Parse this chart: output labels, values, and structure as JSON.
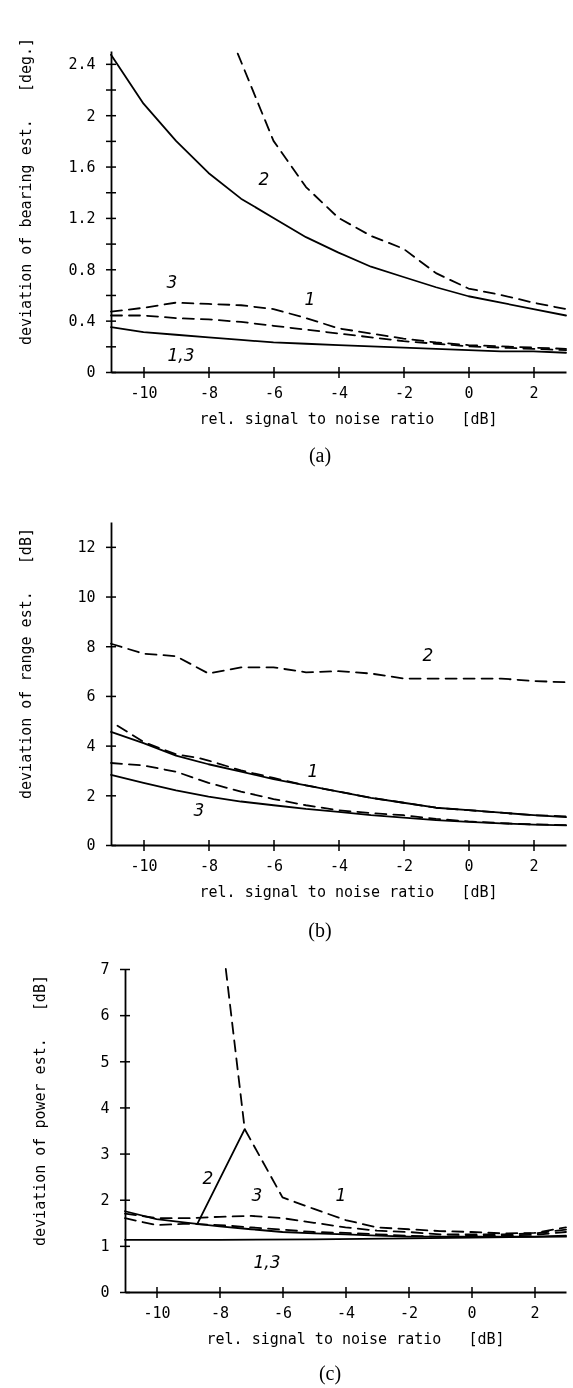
{
  "chart_data": [
    {
      "type": "line",
      "xlabel": "rel. signal to noise ratio   [dB]",
      "ylabel": "deviation of bearing est.   [deg.]",
      "xlim": [
        -11,
        3
      ],
      "ylim": [
        0,
        2.5
      ],
      "xticks": [
        {
          "value": -10,
          "label": "-10"
        },
        {
          "value": -8,
          "label": "-8"
        },
        {
          "value": -6,
          "label": "-6"
        },
        {
          "value": -4,
          "label": "-4"
        },
        {
          "value": -2,
          "label": "-2"
        },
        {
          "value": 0,
          "label": "0"
        },
        {
          "value": 2,
          "label": "2"
        }
      ],
      "yticks": [
        {
          "value": 0,
          "label": "0"
        },
        {
          "value": 0.2,
          "label": null
        },
        0.4,
        {
          "value": 0.6,
          "label": null
        },
        0.8,
        {
          "value": 1.0,
          "label": null
        },
        1.2,
        {
          "value": 1.4,
          "label": null
        },
        1.6,
        {
          "value": 1.8,
          "label": null
        },
        2,
        {
          "value": 2.2,
          "label": null
        },
        2.4
      ],
      "series": [
        {
          "color": "#000000",
          "line_style": "solid",
          "x": [
            -11,
            -10,
            -9,
            -8,
            -7,
            -6,
            -5,
            -4,
            -3,
            -2,
            -1,
            0,
            1,
            2,
            3
          ],
          "values": [
            2.47,
            2.09,
            1.8,
            1.55,
            1.35,
            1.2,
            1.05,
            0.93,
            0.82,
            0.74,
            0.66,
            0.59,
            0.54,
            0.49,
            0.44
          ]
        },
        {
          "color": "#000000",
          "line_style": "dashed",
          "x": [
            -7.1,
            -6,
            -5.5,
            -5,
            -4,
            -3,
            -2,
            -1,
            0,
            1,
            2,
            3
          ],
          "values": [
            2.48,
            1.8,
            1.62,
            1.44,
            1.2,
            1.06,
            0.96,
            0.77,
            0.65,
            0.6,
            0.54,
            0.49
          ]
        },
        {
          "color": "#000000",
          "line_style": "dashed",
          "x": [
            -11,
            -10,
            -9,
            -8,
            -7,
            -6,
            -5,
            -4,
            -3,
            -2,
            -1,
            0,
            1,
            2,
            3
          ],
          "values": [
            0.47,
            0.5,
            0.54,
            0.53,
            0.52,
            0.49,
            0.42,
            0.34,
            0.3,
            0.26,
            0.23,
            0.21,
            0.2,
            0.19,
            0.18
          ]
        },
        {
          "color": "#000000",
          "line_style": "dashed",
          "x": [
            -11,
            -10,
            -9,
            -8,
            -7,
            -6,
            -5,
            -4,
            -3,
            -2,
            -1,
            0,
            1,
            2,
            3
          ],
          "values": [
            0.44,
            0.44,
            0.42,
            0.41,
            0.39,
            0.36,
            0.33,
            0.3,
            0.27,
            0.24,
            0.22,
            0.2,
            0.19,
            0.18,
            0.17
          ]
        },
        {
          "color": "#000000",
          "line_style": "solid",
          "x": [
            -11,
            -10,
            -9,
            -8,
            -7,
            -6,
            -5,
            -4,
            -3,
            -2,
            -1,
            0,
            1,
            2,
            3
          ],
          "values": [
            0.35,
            0.31,
            0.29,
            0.27,
            0.25,
            0.23,
            0.22,
            0.21,
            0.2,
            0.19,
            0.18,
            0.17,
            0.16,
            0.16,
            0.15
          ]
        }
      ],
      "annotations": [
        "2",
        "3",
        "1",
        "1,3",
        "(a)"
      ]
    },
    {
      "type": "line",
      "xlabel": "rel. signal to noise ratio   [dB]",
      "ylabel": "deviation of range est.   [dB]",
      "xlim": [
        -11,
        3
      ],
      "ylim": [
        0,
        13
      ],
      "xticks": [
        {
          "value": -10,
          "label": "-10"
        },
        {
          "value": -8,
          "label": "-8"
        },
        {
          "value": -6,
          "label": "-6"
        },
        {
          "value": -4,
          "label": "-4"
        },
        {
          "value": -2,
          "label": "-2"
        },
        {
          "value": 0,
          "label": "0"
        },
        {
          "value": 2,
          "label": "2"
        }
      ],
      "yticks": [
        {
          "value": 0,
          "label": "0"
        },
        2,
        4,
        6,
        8,
        10,
        12
      ],
      "series": [
        {
          "color": "#000000",
          "line_style": "dashed",
          "x": [
            -11,
            -10,
            -9,
            -8,
            -7,
            -6,
            -5,
            -4,
            -3,
            -2,
            -1,
            0,
            1,
            2,
            3
          ],
          "values": [
            8.1,
            7.7,
            7.6,
            6.9,
            7.15,
            7.15,
            6.95,
            7.0,
            6.9,
            6.7,
            6.7,
            6.7,
            6.7,
            6.6,
            6.55
          ]
        },
        {
          "color": "#000000",
          "line_style": "solid",
          "x": [
            -11,
            -10,
            -9,
            -8,
            -7,
            -6,
            -5,
            -4,
            -3,
            -2,
            -1,
            0,
            1,
            2,
            3
          ],
          "values": [
            4.55,
            4.1,
            3.6,
            3.25,
            2.95,
            2.65,
            2.4,
            2.15,
            1.9,
            1.7,
            1.5,
            1.4,
            1.3,
            1.2,
            1.12
          ]
        },
        {
          "color": "#000000",
          "line_style": "dashed",
          "x": [
            -10.8,
            -10,
            -9,
            -8.3,
            -8,
            -7,
            -6,
            -5,
            -4,
            -3,
            -2,
            -1,
            0,
            1,
            2,
            3
          ],
          "values": [
            4.8,
            4.15,
            3.65,
            3.5,
            3.4,
            3.0,
            2.7,
            2.4,
            2.15,
            1.9,
            1.7,
            1.5,
            1.4,
            1.3,
            1.2,
            1.15
          ]
        },
        {
          "color": "#000000",
          "line_style": "dashed",
          "x": [
            -11,
            -10,
            -9,
            -8,
            -7,
            -6,
            -5,
            -4,
            -3,
            -2,
            -1,
            0,
            1,
            2,
            3
          ],
          "values": [
            3.3,
            3.2,
            2.95,
            2.5,
            2.15,
            1.85,
            1.6,
            1.4,
            1.28,
            1.2,
            1.05,
            0.95,
            0.88,
            0.83,
            0.8
          ]
        },
        {
          "color": "#000000",
          "line_style": "solid",
          "x": [
            -11,
            -10,
            -9,
            -8,
            -7,
            -6,
            -5,
            -4,
            -3,
            -2,
            -1,
            0,
            1,
            2,
            3
          ],
          "values": [
            2.82,
            2.5,
            2.2,
            1.95,
            1.75,
            1.6,
            1.45,
            1.33,
            1.2,
            1.1,
            1.0,
            0.93,
            0.87,
            0.82,
            0.79
          ]
        }
      ],
      "annotations": [
        "2",
        "1",
        "3",
        "(b)"
      ]
    },
    {
      "type": "line",
      "xlabel": "rel. signal to noise ratio   [dB]",
      "ylabel": "deviation of power est.   [dB]",
      "xlim": [
        -11,
        3
      ],
      "ylim": [
        0,
        7
      ],
      "xticks": [
        {
          "value": -10,
          "label": "-10"
        },
        {
          "value": -8,
          "label": "-8"
        },
        {
          "value": -6,
          "label": "-6"
        },
        {
          "value": -4,
          "label": "-4"
        },
        {
          "value": -2,
          "label": "-2"
        },
        {
          "value": 0,
          "label": "0"
        },
        {
          "value": 2,
          "label": "2"
        }
      ],
      "yticks": [
        {
          "value": 0,
          "label": "0"
        },
        1,
        2,
        3,
        4,
        5,
        6,
        7
      ],
      "series": [
        {
          "color": "#000000",
          "line_style": "dashed",
          "x": [
            -7.8,
            -7.2,
            -6,
            -5,
            -4,
            -3,
            -2,
            -1,
            0,
            1,
            2,
            3
          ],
          "values": [
            7.0,
            3.53,
            2.05,
            1.8,
            1.56,
            1.4,
            1.36,
            1.32,
            1.3,
            1.27,
            1.28,
            1.4
          ]
        },
        {
          "color": "#000000",
          "line_style": "solid",
          "x": [
            -8.7,
            -7.2
          ],
          "values": [
            1.48,
            3.53
          ]
        },
        {
          "color": "#000000",
          "line_style": "solid",
          "x": [
            -11,
            -10,
            -9,
            -8,
            -7,
            -6,
            -5,
            -4,
            -3,
            -2,
            -1,
            0,
            1,
            2,
            3
          ],
          "values": [
            1.75,
            1.58,
            1.5,
            1.42,
            1.36,
            1.3,
            1.27,
            1.25,
            1.22,
            1.2,
            1.2,
            1.2,
            1.2,
            1.2,
            1.22
          ]
        },
        {
          "color": "#000000",
          "line_style": "dashed",
          "x": [
            -11,
            -10,
            -9,
            -8,
            -7,
            -6,
            -5,
            -4,
            -3,
            -2,
            -1,
            0,
            1,
            2,
            3
          ],
          "values": [
            1.7,
            1.6,
            1.6,
            1.63,
            1.65,
            1.6,
            1.5,
            1.4,
            1.33,
            1.3,
            1.25,
            1.25,
            1.25,
            1.27,
            1.35
          ]
        },
        {
          "color": "#000000",
          "line_style": "dashed",
          "x": [
            -11,
            -10,
            -9,
            -8,
            -7,
            -6,
            -5,
            -4,
            -3,
            -2,
            -1,
            0,
            1,
            2,
            3
          ],
          "values": [
            1.6,
            1.45,
            1.48,
            1.45,
            1.4,
            1.35,
            1.3,
            1.28,
            1.25,
            1.22,
            1.2,
            1.22,
            1.22,
            1.24,
            1.3
          ]
        },
        {
          "color": "#000000",
          "line_style": "solid",
          "x": [
            -11,
            -8,
            -5,
            -2,
            0,
            3
          ],
          "values": [
            1.13,
            1.13,
            1.14,
            1.16,
            1.18,
            1.2
          ]
        }
      ],
      "annotations": [
        "2",
        "3",
        "1",
        "1,3",
        "(c)"
      ]
    }
  ]
}
